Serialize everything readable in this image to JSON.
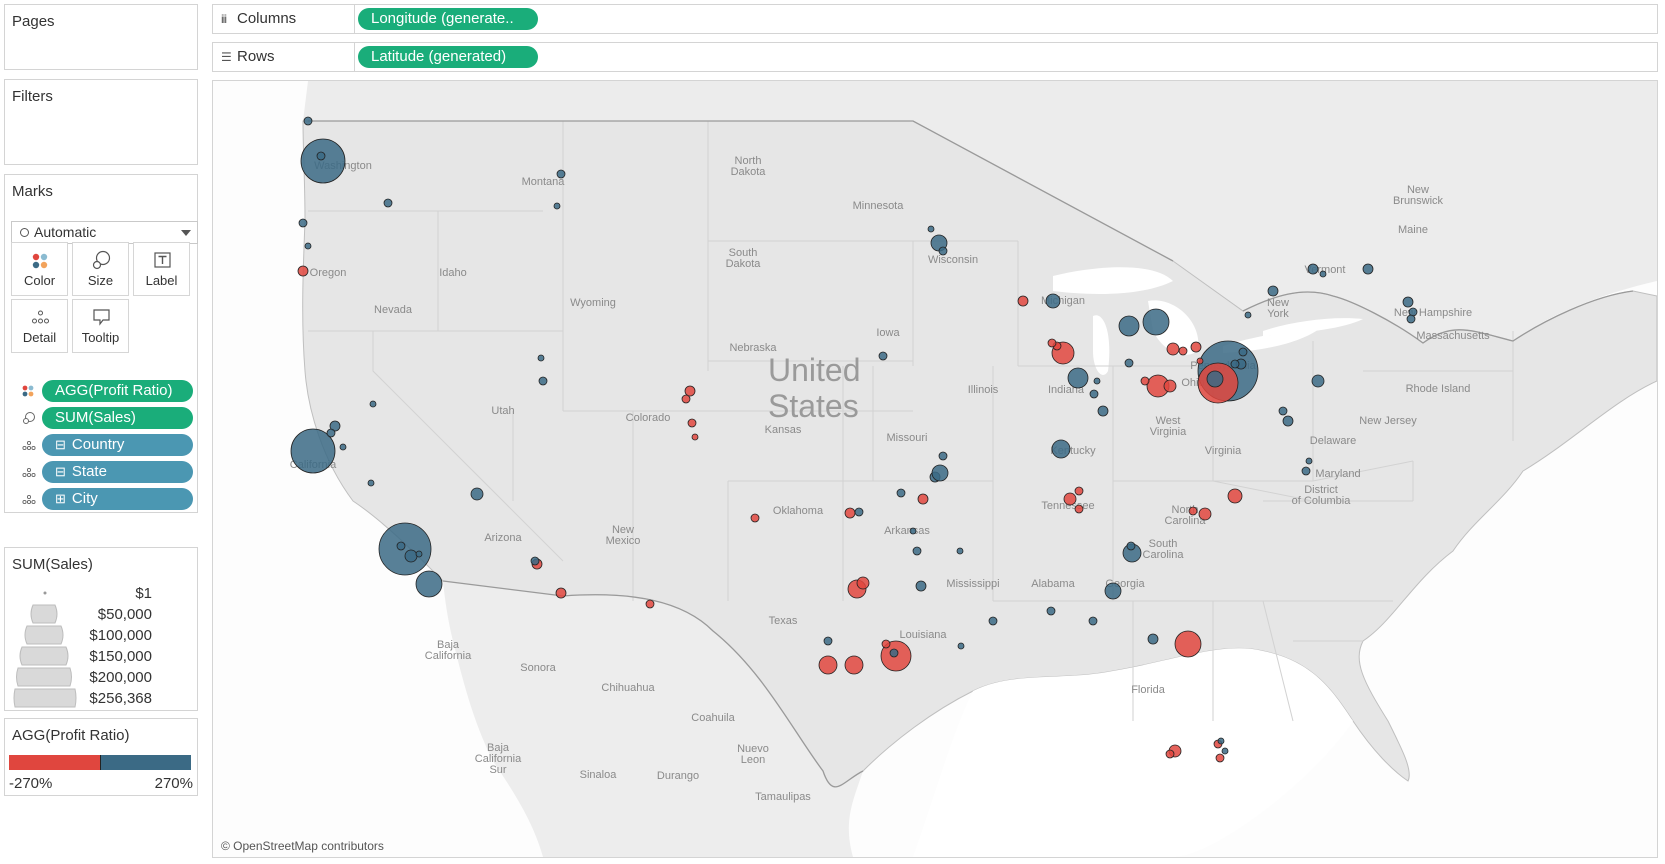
{
  "pages": {
    "title": "Pages"
  },
  "filters": {
    "title": "Filters"
  },
  "columns_shelf": {
    "label": "Columns",
    "glyph": "iii",
    "pill": "Longitude (generate.."
  },
  "rows_shelf": {
    "label": "Rows",
    "glyph": "☰",
    "pill": "Latitude (generated)"
  },
  "marks": {
    "title": "Marks",
    "mark_type": "Automatic",
    "buttons": [
      {
        "label": "Color",
        "icon": "color-dots-icon"
      },
      {
        "label": "Size",
        "icon": "size-circles-icon"
      },
      {
        "label": "Label",
        "icon": "label-text-icon"
      },
      {
        "label": "Detail",
        "icon": "detail-dots-icon"
      },
      {
        "label": "Tooltip",
        "icon": "tooltip-bubble-icon"
      }
    ],
    "fields": [
      {
        "label": "AGG(Profit Ratio)",
        "encoding": "color",
        "color": "#1aad7a",
        "expand": ""
      },
      {
        "label": "SUM(Sales)",
        "encoding": "size",
        "color": "#1aad7a",
        "expand": ""
      },
      {
        "label": "Country",
        "encoding": "detail",
        "color": "#4b97b2",
        "expand": "⊟"
      },
      {
        "label": "State",
        "encoding": "detail",
        "color": "#4b97b2",
        "expand": "⊟"
      },
      {
        "label": "City",
        "encoding": "detail",
        "color": "#4b97b2",
        "expand": "⊞"
      }
    ]
  },
  "size_legend": {
    "title": "SUM(Sales)",
    "entries": [
      "$1",
      "$50,000",
      "$100,000",
      "$150,000",
      "$200,000",
      "$256,368"
    ]
  },
  "color_legend": {
    "title": "AGG(Profit Ratio)",
    "min_label": "-270%",
    "max_label": "270%",
    "negative_color": "#e0463e",
    "positive_color": "#3b6a85"
  },
  "map": {
    "country_label": [
      "United",
      "States"
    ],
    "attribution": "© OpenStreetMap contributors",
    "labels": [
      "Washington",
      "Oregon",
      "Idaho",
      "Montana",
      "Wyoming",
      "North Dakota",
      "South Dakota",
      "Nebraska",
      "Minnesota",
      "Wisconsin",
      "Michigan",
      "Iowa",
      "Illinois",
      "Indiana",
      "Ohio",
      "Pennsylvania",
      "New York",
      "Vermont",
      "Maine",
      "New Hampshire",
      "Massachusetts",
      "Rhode Island",
      "New Jersey",
      "Delaware",
      "Maryland",
      "District of Columbia",
      "West Virginia",
      "Virginia",
      "Kentucky",
      "Tennessee",
      "North Carolina",
      "South Carolina",
      "Georgia",
      "Alabama",
      "Mississippi",
      "Louisiana",
      "Arkansas",
      "Missouri",
      "Kansas",
      "Oklahoma",
      "Texas",
      "New Mexico",
      "Colorado",
      "Utah",
      "Nevada",
      "California",
      "Arizona",
      "Florida",
      "New Brunswick",
      "Baja California",
      "Sonora",
      "Chihuahua",
      "Coahuila",
      "Baja California Sur",
      "Nuevo Leon",
      "Sinaloa",
      "Durango",
      "Tamaulipas"
    ]
  }
}
